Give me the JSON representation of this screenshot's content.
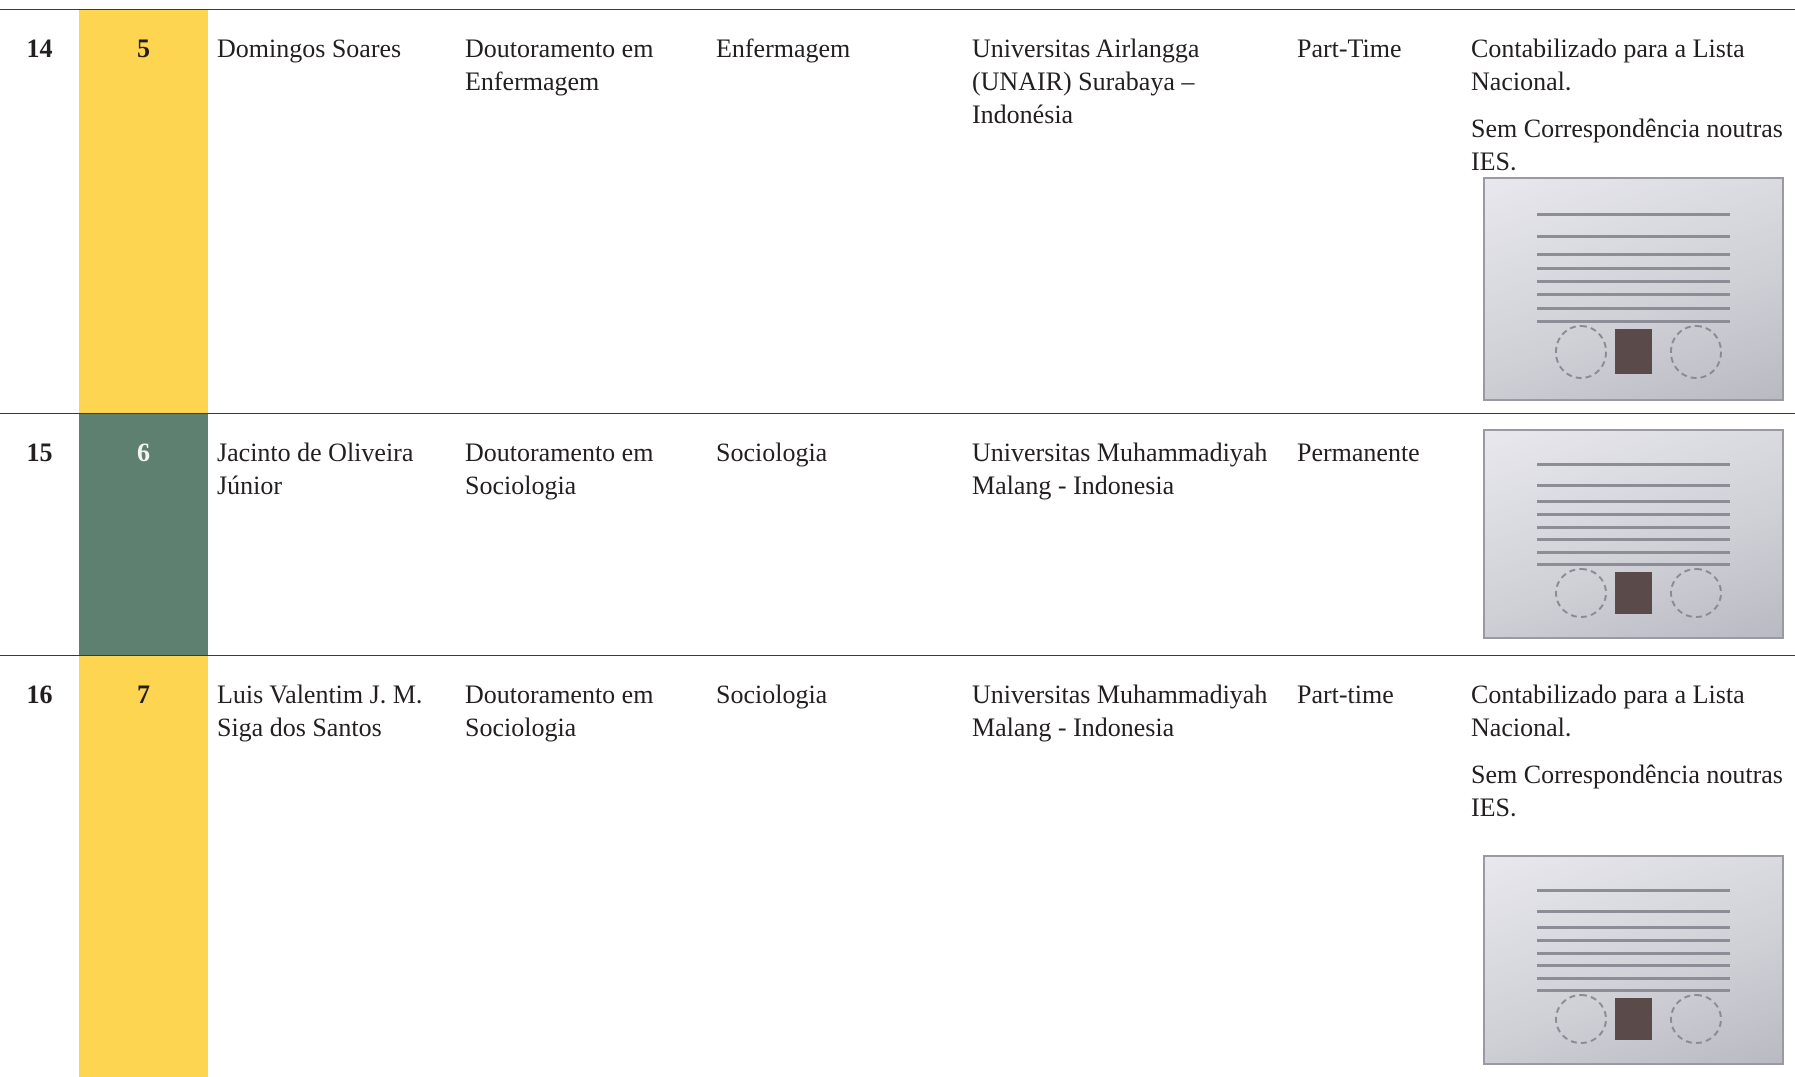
{
  "rows": [
    {
      "index": "14",
      "number": "5",
      "name": "Domingos Soares",
      "degree": "Doutoramento em Enfermagem",
      "field": "Enfermagem",
      "institution": "Universitas Airlangga (UNAIR) Surabaya – Indonésia",
      "regime": "Part-Time",
      "notes": [
        "Contabilizado para a Lista Nacional.",
        "Sem Correspondência noutras IES."
      ]
    },
    {
      "index": "15",
      "number": "6",
      "name": "Jacinto de Oliveira Júnior",
      "degree": "Doutoramento em Sociologia",
      "field": "Sociologia",
      "institution": "Universitas Muhammadiyah Malang - Indonesia",
      "regime": "Permanente"
    },
    {
      "index": "16",
      "number": "7",
      "name": "Luis Valentim J. M. Siga dos Santos",
      "degree": "Doutoramento em Sociologia",
      "field": "Sociologia",
      "institution": "Universitas Muhammadiyah Malang - Indonesia",
      "regime": "Part-time",
      "notes": [
        "Contabilizado para a Lista Nacional.",
        "Sem Correspondência noutras IES."
      ]
    }
  ]
}
